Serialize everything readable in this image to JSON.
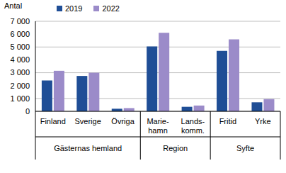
{
  "chart_data": {
    "type": "bar",
    "y_label": "Antal",
    "categories": [
      "Finland",
      "Sverige",
      "Övriga",
      "Marie-hamn",
      "Lands-komm.",
      "Fritid",
      "Yrke"
    ],
    "groups": [
      {
        "label": "Gästernas hemland",
        "size": 3
      },
      {
        "label": "Region",
        "size": 2
      },
      {
        "label": "Syfte",
        "size": 2
      }
    ],
    "series": [
      {
        "name": "2019",
        "color": "#1f4e96",
        "values": [
          2400,
          2750,
          200,
          5050,
          350,
          4700,
          700
        ]
      },
      {
        "name": "2022",
        "color": "#9b8bc9",
        "values": [
          3150,
          3000,
          250,
          6100,
          450,
          5600,
          950
        ]
      }
    ],
    "ylim": [
      0,
      7000
    ],
    "yticks": [
      0,
      {
        "value": 1000,
        "label": "1 000"
      },
      {
        "value": 2000,
        "label": "2 000"
      },
      {
        "value": 3000,
        "label": "3 000"
      },
      {
        "value": 4000,
        "label": "4 000"
      },
      {
        "value": 5000,
        "label": "5 000"
      },
      {
        "value": 6000,
        "label": "6 000"
      },
      {
        "value": 7000,
        "label": "7 000"
      }
    ],
    "grid": true,
    "legend": "top"
  }
}
